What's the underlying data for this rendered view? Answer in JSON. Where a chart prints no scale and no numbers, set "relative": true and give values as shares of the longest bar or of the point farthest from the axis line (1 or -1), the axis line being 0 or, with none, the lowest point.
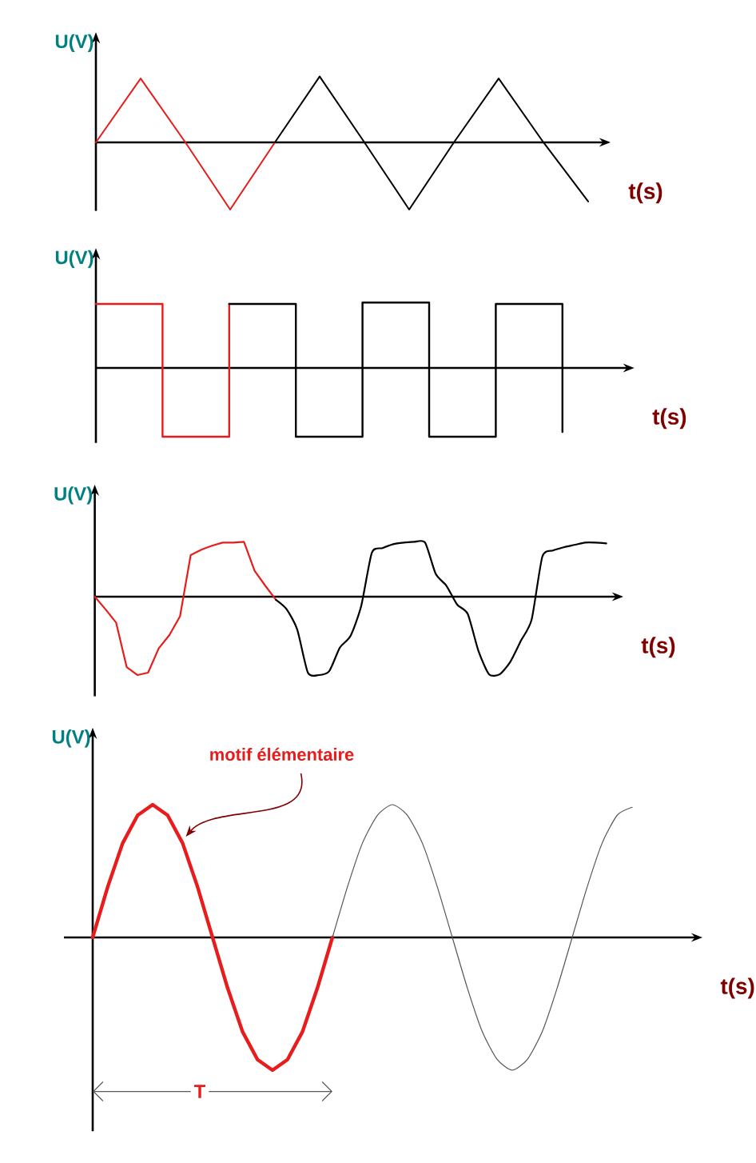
{
  "chart_data": [
    {
      "type": "line",
      "relative": true,
      "ylabel": "U(V)",
      "xlabel": "t(s)",
      "categories": [
        null,
        null,
        null,
        null,
        null,
        null,
        null,
        null,
        null,
        null,
        null,
        null
      ],
      "series": [
        {
          "color": "#e81c1c",
          "values": [
            0,
            0.95,
            0,
            -1,
            0,
            null,
            null,
            null,
            null,
            null,
            null,
            null
          ]
        },
        {
          "color": "#000000",
          "values": [
            null,
            null,
            null,
            null,
            0,
            0.98,
            0,
            -1,
            0,
            0.95,
            0,
            -0.88
          ]
        }
      ]
    },
    {
      "type": "step",
      "relative": true,
      "ylabel": "U(V)",
      "xlabel": "t(s)",
      "categories": [
        null,
        null,
        null,
        null,
        null,
        null,
        null,
        null
      ],
      "series": [
        {
          "color": "#e81c1c",
          "values": [
            0.93,
            -1,
            0.93,
            null,
            null,
            null,
            null,
            null
          ]
        },
        {
          "color": "#000000",
          "values": [
            null,
            null,
            0.93,
            -1,
            0.95,
            -1,
            0.93,
            -0.93
          ]
        }
      ]
    },
    {
      "type": "line",
      "relative": true,
      "ylabel": "U(V)",
      "xlabel": "t(s)",
      "categories": [
        null,
        null,
        null,
        null,
        null,
        null,
        null,
        null,
        null,
        null,
        null,
        null,
        null,
        null,
        null,
        null,
        null,
        null,
        null,
        null,
        null,
        null,
        null,
        null,
        null,
        null,
        null,
        null,
        null,
        null,
        null,
        null,
        null,
        null,
        null,
        null,
        null,
        null,
        null,
        null,
        null,
        null,
        null,
        null,
        null,
        null,
        null,
        null,
        null
      ],
      "series": [
        {
          "color": "#e81c1c",
          "values": [
            0,
            -0.16,
            -0.33,
            -0.9,
            -1,
            -0.97,
            -0.66,
            -0.49,
            -0.25,
            0.53,
            0.6,
            0.65,
            0.69,
            0.69,
            0.7,
            0.33,
            0.14,
            -0.04,
            null,
            null,
            null,
            null,
            null,
            null,
            null,
            null,
            null,
            null,
            null,
            null,
            null,
            null,
            null,
            null,
            null,
            null,
            null,
            null,
            null,
            null,
            null,
            null,
            null,
            null,
            null,
            null,
            null,
            null,
            null
          ]
        },
        {
          "color": "#000000",
          "values": [
            null,
            null,
            null,
            null,
            null,
            null,
            null,
            null,
            null,
            null,
            null,
            null,
            null,
            null,
            null,
            null,
            null,
            -0.04,
            -0.16,
            -0.42,
            -0.97,
            -1,
            -0.95,
            -0.65,
            -0.5,
            -0.12,
            0.56,
            0.62,
            0.67,
            0.69,
            0.7,
            0.69,
            0.29,
            0.14,
            -0.1,
            -0.22,
            -0.69,
            -0.99,
            -0.99,
            -0.83,
            -0.56,
            -0.29,
            0.51,
            0.59,
            0.63,
            0.66,
            0.69,
            0.69,
            0.68
          ]
        }
      ]
    },
    {
      "type": "line",
      "relative": true,
      "ylabel": "U(V)",
      "xlabel": "t(s)",
      "annotations": [
        "motif élémentaire",
        "T"
      ],
      "categories": [
        null,
        null,
        null,
        null,
        null,
        null,
        null,
        null,
        null,
        null,
        null,
        null,
        null,
        null,
        null,
        null,
        null,
        null,
        null,
        null,
        null,
        null,
        null,
        null,
        null,
        null,
        null,
        null,
        null,
        null,
        null,
        null,
        null,
        null,
        null,
        null,
        null
      ],
      "series": [
        {
          "color": "#e81c1c",
          "values": [
            0,
            0.38,
            0.71,
            0.92,
            1,
            0.92,
            0.71,
            0.38,
            0,
            -0.38,
            -0.71,
            -0.92,
            -1,
            -0.92,
            -0.71,
            -0.38,
            0,
            null,
            null,
            null,
            null,
            null,
            null,
            null,
            null,
            null,
            null,
            null,
            null,
            null,
            null,
            null,
            null,
            null,
            null,
            null,
            null
          ]
        },
        {
          "color": "#555555",
          "values": [
            null,
            null,
            null,
            null,
            null,
            null,
            null,
            null,
            null,
            null,
            null,
            null,
            null,
            null,
            null,
            null,
            0,
            0.38,
            0.71,
            0.92,
            1,
            0.92,
            0.71,
            0.38,
            0,
            -0.38,
            -0.71,
            -0.92,
            -1,
            -0.92,
            -0.71,
            -0.38,
            0,
            0.38,
            0.71,
            0.92,
            0.98
          ]
        }
      ]
    }
  ]
}
